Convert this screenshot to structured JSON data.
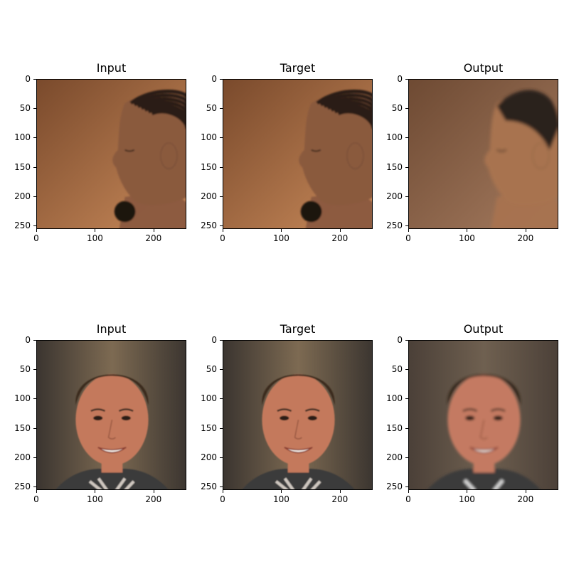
{
  "figure": {
    "rows": [
      {
        "panels": [
          {
            "title": "Input",
            "subject": "profile-face-braids",
            "palette": {
              "bg1": "#7a4a2c",
              "bg2": "#c98a5a",
              "skin": "#8a5a3e",
              "hair": "#2a1d17"
            }
          },
          {
            "title": "Target",
            "subject": "profile-face-braids",
            "palette": {
              "bg1": "#7a4a2c",
              "bg2": "#c98a5a",
              "skin": "#8a5a3e",
              "hair": "#2a1d17"
            }
          },
          {
            "title": "Output",
            "subject": "profile-face-reconstruction",
            "palette": {
              "bg1": "#6e4a33",
              "bg2": "#a57b5f",
              "skin": "#a8734f",
              "hair": "#2b231f"
            }
          }
        ]
      },
      {
        "panels": [
          {
            "title": "Input",
            "subject": "frontal-face-smiling",
            "palette": {
              "bg1": "#3b3530",
              "bg2": "#7d6a52",
              "skin": "#c4795c",
              "hair": "#3b2b1f"
            }
          },
          {
            "title": "Target",
            "subject": "frontal-face-smiling",
            "palette": {
              "bg1": "#3b3530",
              "bg2": "#7d6a52",
              "skin": "#c4795c",
              "hair": "#3b2b1f"
            }
          },
          {
            "title": "Output",
            "subject": "frontal-face-reconstruction",
            "palette": {
              "bg1": "#4b4038",
              "bg2": "#6f6050",
              "skin": "#c47a62",
              "hair": "#2d2018"
            }
          }
        ]
      }
    ],
    "xticks": [
      "0",
      "100",
      "200"
    ],
    "yticks": [
      "0",
      "50",
      "100",
      "150",
      "200",
      "250"
    ]
  }
}
